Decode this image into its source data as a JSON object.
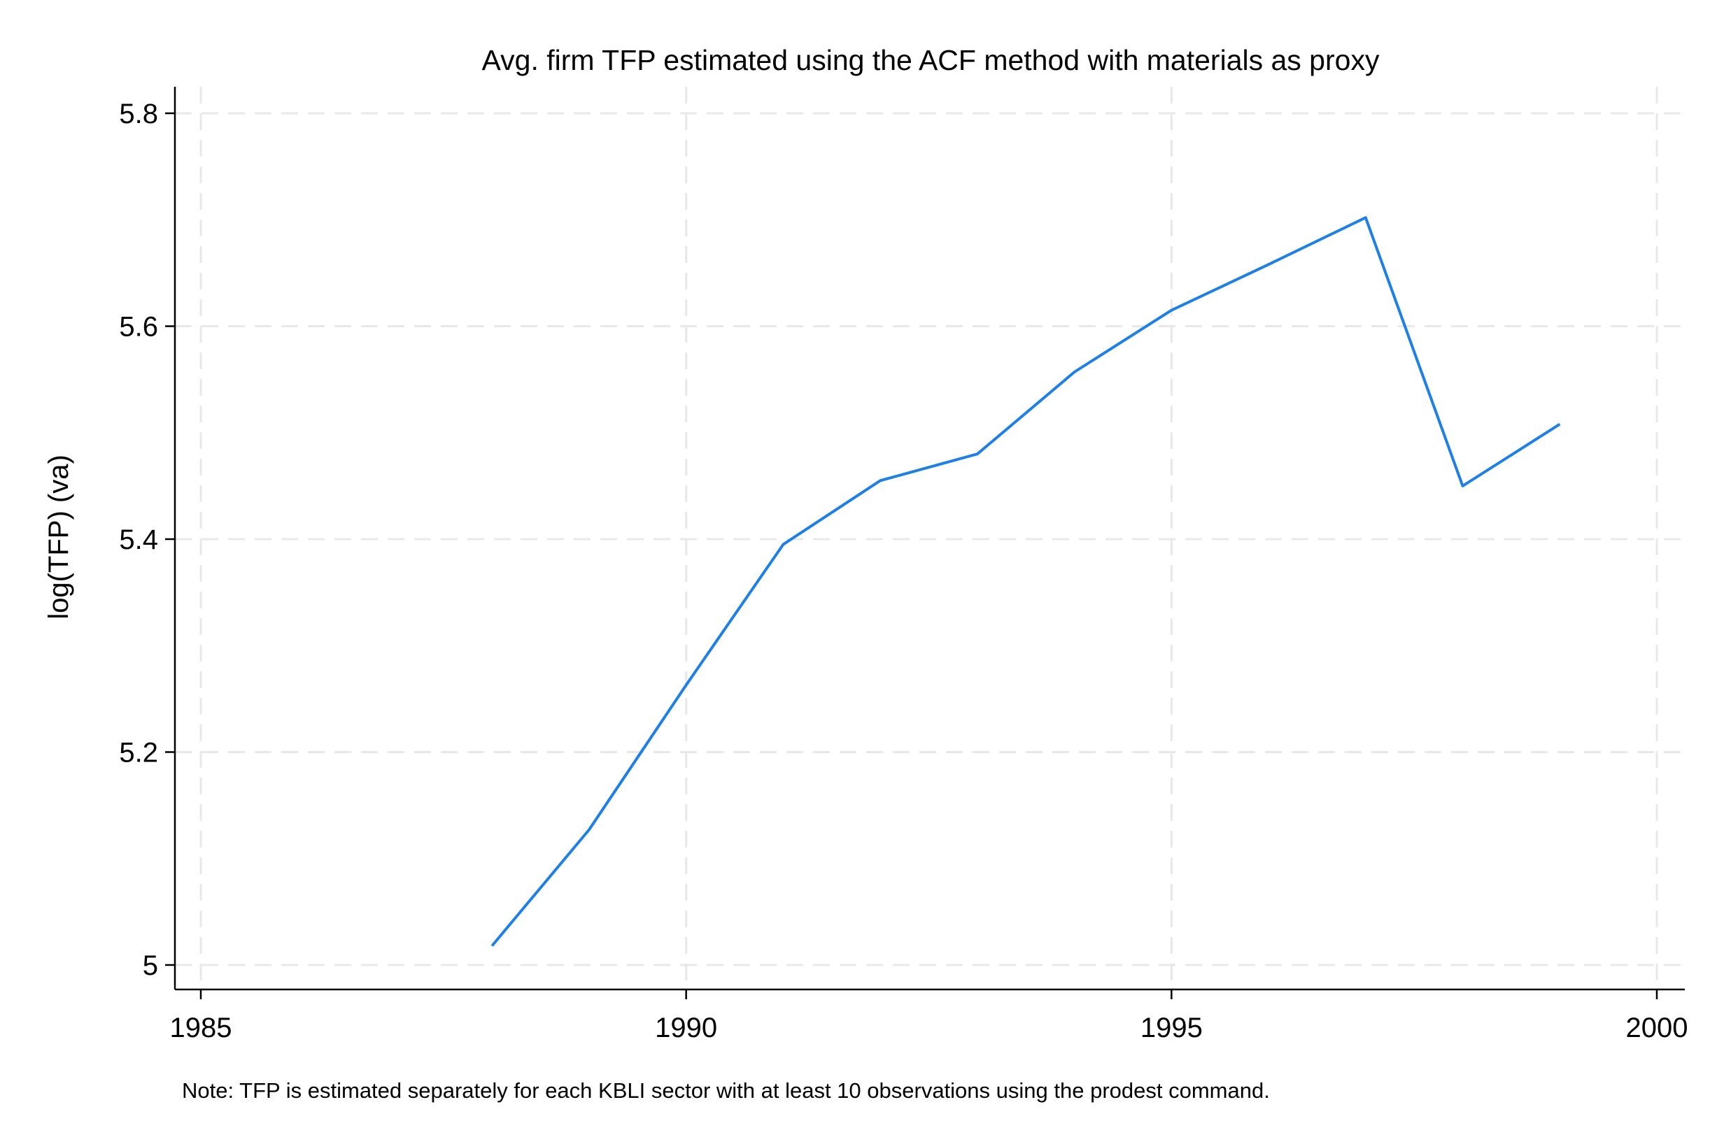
{
  "chart_data": {
    "type": "line",
    "title": "Avg. firm TFP estimated using the ACF method with materials as proxy",
    "ylabel": "log(TFP) (va)",
    "xlabel": "",
    "note": "Note: TFP is estimated separately for each KBLI sector with at least 10 observations using the prodest command.",
    "xlim": [
      1985,
      2000
    ],
    "ylim": [
      5,
      5.8
    ],
    "x_ticks": [
      1985,
      1990,
      1995,
      2000
    ],
    "y_ticks": [
      5,
      5.2,
      5.4,
      5.6,
      5.8
    ],
    "x_tick_labels": [
      "1985",
      "1990",
      "1995",
      "2000"
    ],
    "y_tick_labels": [
      "5",
      "5.2",
      "5.4",
      "5.6",
      "5.8"
    ],
    "grid": true,
    "legend": "none",
    "series": [
      {
        "color": "#1e7fe6",
        "x": [
          1988,
          1989,
          1990,
          1991,
          1992,
          1993,
          1994,
          1995,
          1996,
          1997,
          1998,
          1999
        ],
        "y": [
          5.018,
          5.127,
          5.263,
          5.395,
          5.455,
          5.48,
          5.557,
          5.615,
          5.658,
          5.702,
          5.45,
          5.508
        ]
      }
    ]
  }
}
